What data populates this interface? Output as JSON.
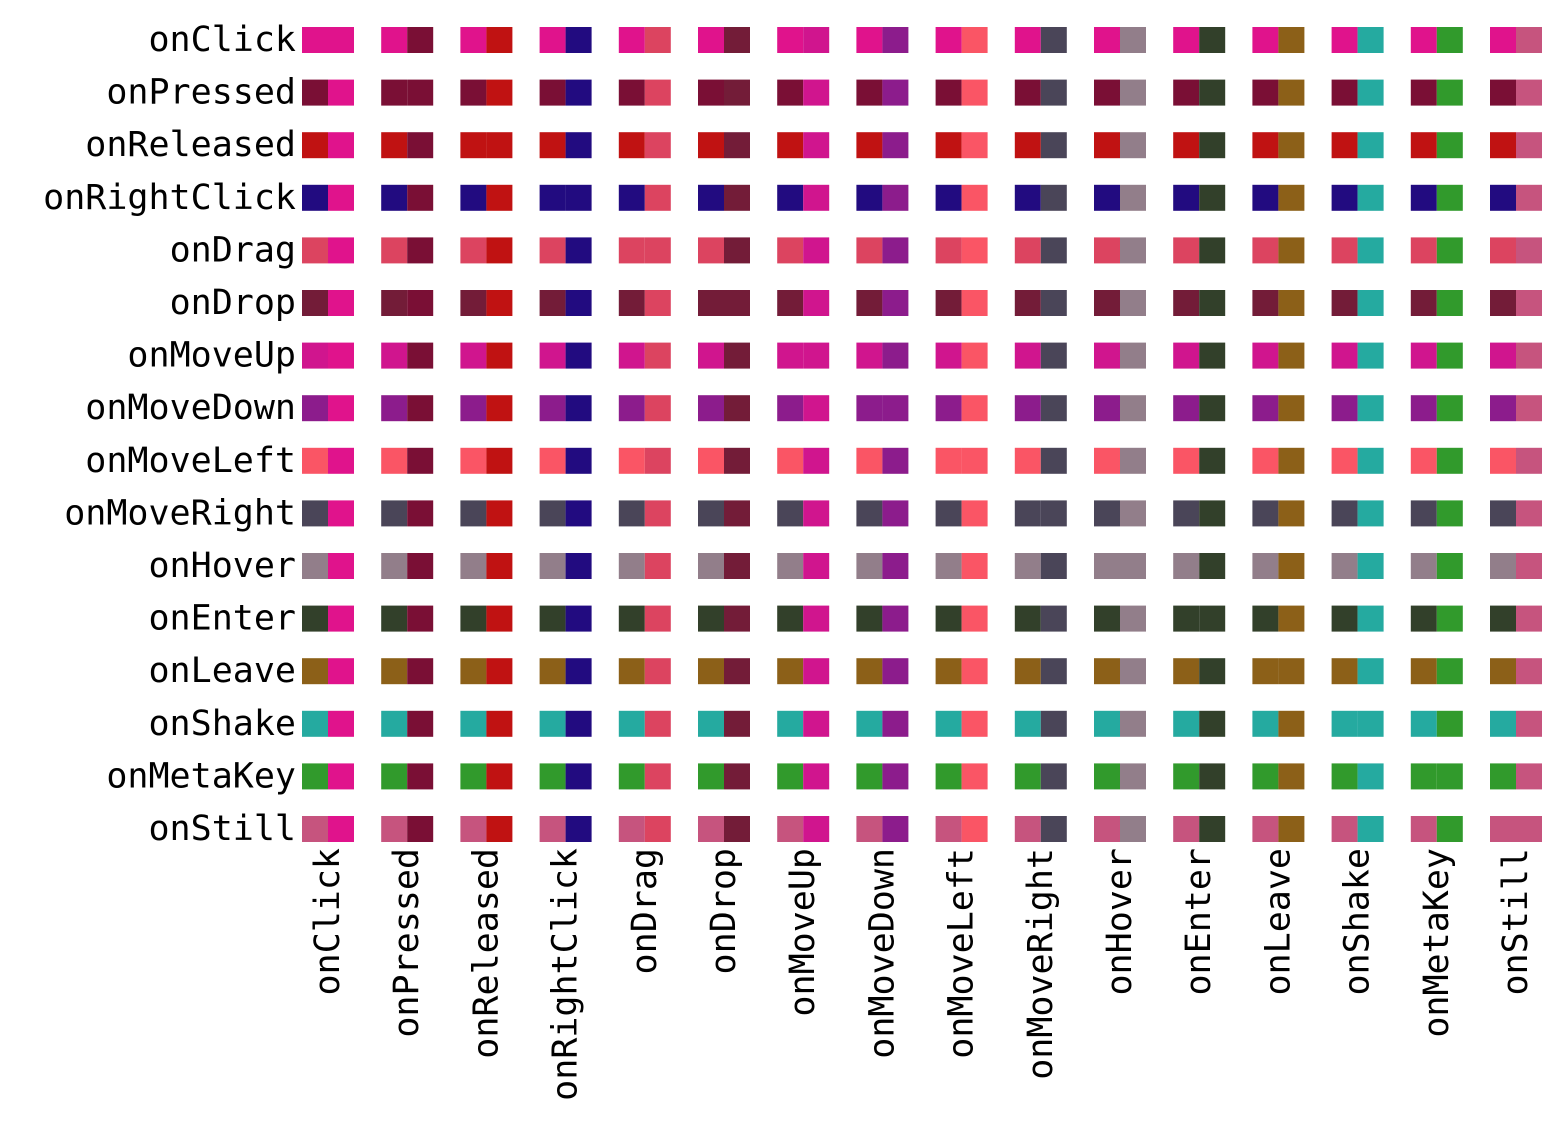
{
  "chart_data": {
    "type": "heatmap",
    "title": "",
    "xlabel": "",
    "ylabel": "",
    "grid": false,
    "legend": "none",
    "rows": [
      "onClick",
      "onPressed",
      "onReleased",
      "onRightClick",
      "onDrag",
      "onDrop",
      "onMoveUp",
      "onMoveDown",
      "onMoveLeft",
      "onMoveRight",
      "onHover",
      "onEnter",
      "onLeave",
      "onShake",
      "onMetaKey",
      "onStill"
    ],
    "columns": [
      "onClick",
      "onPressed",
      "onReleased",
      "onRightClick",
      "onDrag",
      "onDrop",
      "onMoveUp",
      "onMoveDown",
      "onMoveLeft",
      "onMoveRight",
      "onHover",
      "onEnter",
      "onLeave",
      "onShake",
      "onMetaKey",
      "onStill"
    ],
    "colors": {
      "onClick": "#e0138c",
      "onPressed": "#7a0f35",
      "onReleased": "#c01212",
      "onRightClick": "#220b80",
      "onDrag": "#dc4460",
      "onDrop": "#731c38",
      "onMoveUp": "#d0158e",
      "onMoveDown": "#8c1c8c",
      "onMoveLeft": "#fa5565",
      "onMoveRight": "#4a4558",
      "onHover": "#927e8a",
      "onEnter": "#32402a",
      "onLeave": "#8c6018",
      "onShake": "#25aaa0",
      "onMetaKey": "#319a2c",
      "onStill": "#c6547e"
    },
    "cell_encoding": "left half = row event color, right half = column event color"
  }
}
